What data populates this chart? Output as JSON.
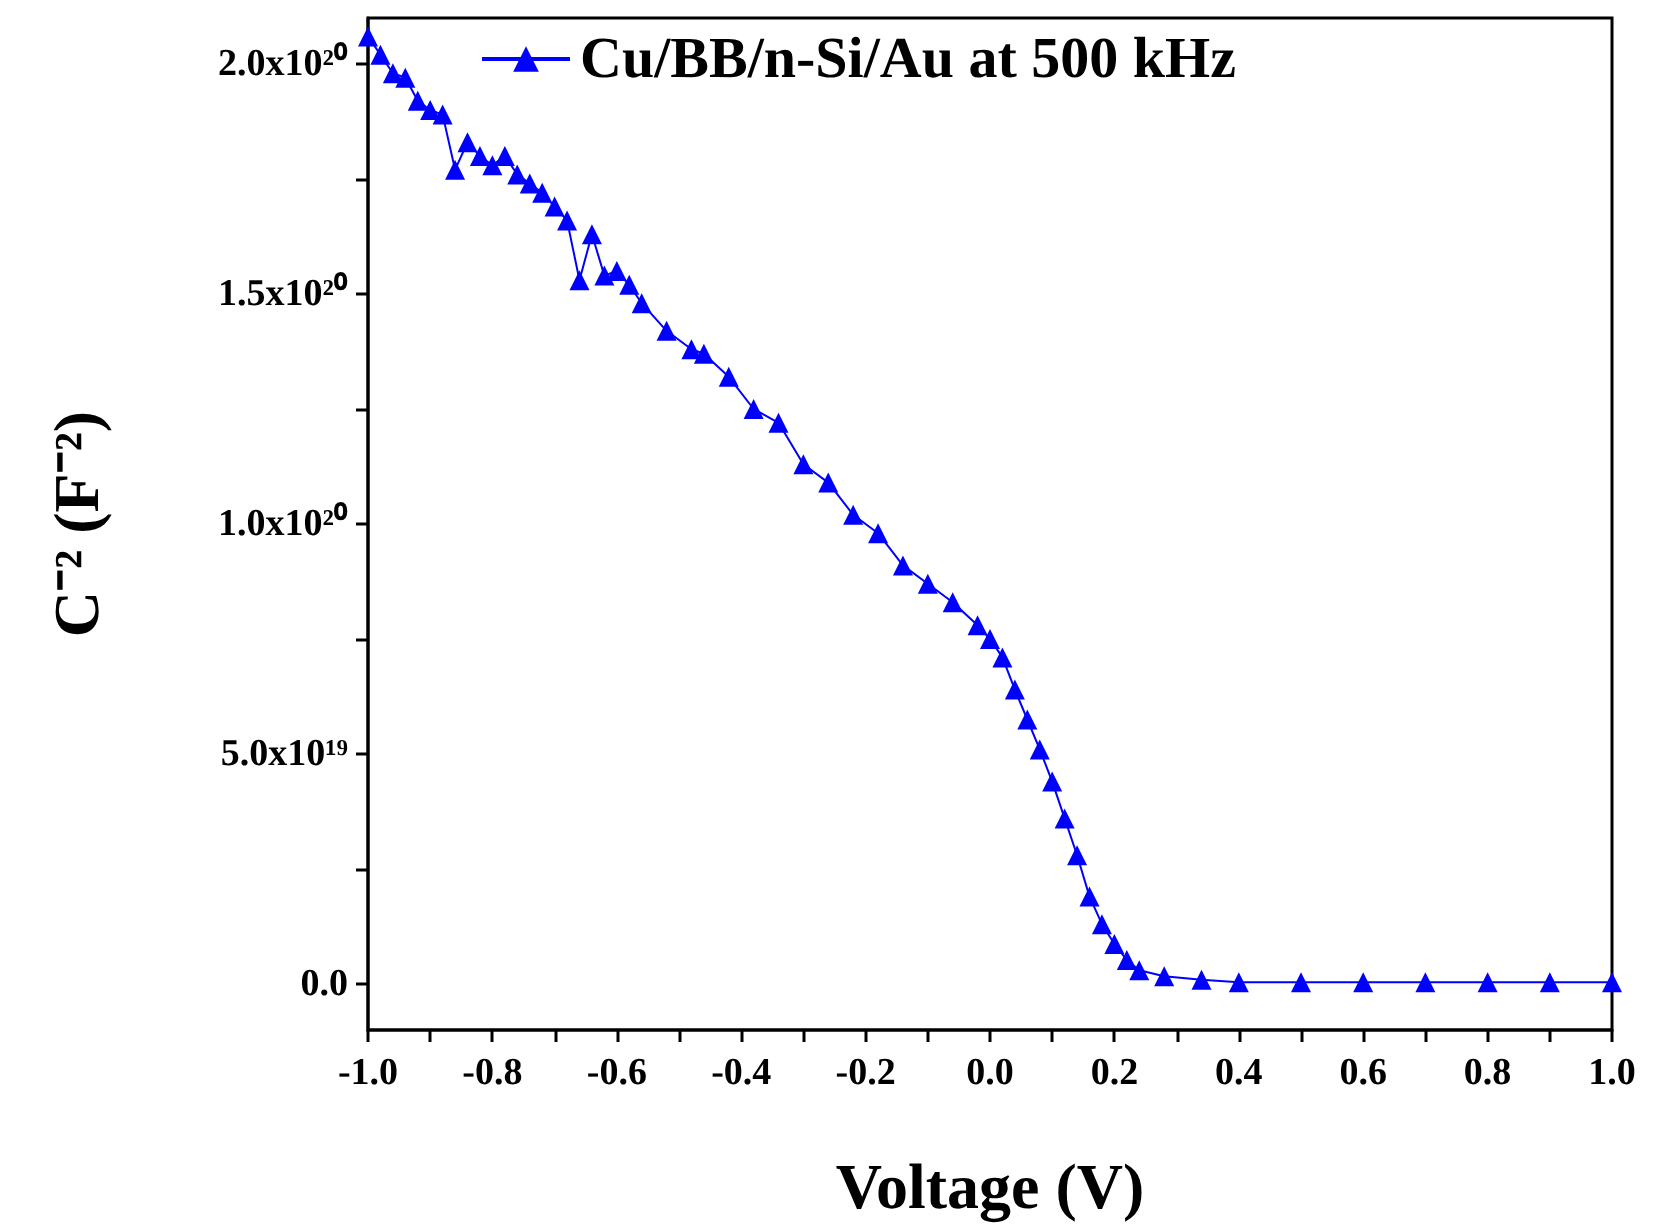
{
  "chart_data": {
    "type": "line",
    "xlabel": "Voltage (V)",
    "ylabel": "C⁻² (F⁻²)",
    "marker": "triangle",
    "line_style": "solid",
    "legend": "top",
    "grid": false,
    "xlim": [
      -1.0,
      1.0
    ],
    "xticks": [
      {
        "value": -1.0,
        "label": "-1.0"
      },
      {
        "value": -0.9,
        "label": null
      },
      {
        "value": -0.8,
        "label": "-0.8"
      },
      {
        "value": -0.7,
        "label": null
      },
      {
        "value": -0.6,
        "label": "-0.6"
      },
      {
        "value": -0.5,
        "label": null
      },
      {
        "value": -0.4,
        "label": "-0.4"
      },
      {
        "value": -0.3,
        "label": null
      },
      {
        "value": -0.2,
        "label": "-0.2"
      },
      {
        "value": -0.1,
        "label": null
      },
      {
        "value": 0.0,
        "label": "0.0"
      },
      {
        "value": 0.1,
        "label": null
      },
      {
        "value": 0.2,
        "label": "0.2"
      },
      {
        "value": 0.3,
        "label": null
      },
      {
        "value": 0.4,
        "label": "0.4"
      },
      {
        "value": 0.5,
        "label": null
      },
      {
        "value": 0.6,
        "label": "0.6"
      },
      {
        "value": 0.7,
        "label": null
      },
      {
        "value": 0.8,
        "label": "0.8"
      },
      {
        "value": 0.9,
        "label": null
      },
      {
        "value": 1.0,
        "label": "1.0"
      }
    ],
    "ylim": [
      -1e+19,
      2.1e+20
    ],
    "yticks": [
      {
        "value": 0,
        "label": "0.0"
      },
      {
        "value": 2.5e+19,
        "label": null
      },
      {
        "value": 5e+19,
        "label": "5.0x10¹⁹"
      },
      {
        "value": 7.5e+19,
        "label": null
      },
      {
        "value": 1e+20,
        "label": "1.0x10²⁰"
      },
      {
        "value": 1.25e+20,
        "label": null
      },
      {
        "value": 1.5e+20,
        "label": "1.5x10²⁰"
      },
      {
        "value": 1.75e+20,
        "label": null
      },
      {
        "value": 2e+20,
        "label": "2.0x10²⁰"
      }
    ],
    "series": [
      {
        "name": "Cu/BB/n-Si/Au at 500 kHz",
        "color": "#0000ff",
        "x": [
          -1.0,
          -0.98,
          -0.96,
          -0.94,
          -0.92,
          -0.9,
          -0.88,
          -0.86,
          -0.84,
          -0.82,
          -0.8,
          -0.78,
          -0.76,
          -0.74,
          -0.72,
          -0.7,
          -0.68,
          -0.66,
          -0.64,
          -0.62,
          -0.6,
          -0.58,
          -0.56,
          -0.52,
          -0.48,
          -0.46,
          -0.42,
          -0.38,
          -0.34,
          -0.3,
          -0.26,
          -0.22,
          -0.18,
          -0.14,
          -0.1,
          -0.06,
          -0.02,
          0.0,
          0.02,
          0.04,
          0.06,
          0.08,
          0.1,
          0.12,
          0.14,
          0.16,
          0.18,
          0.2,
          0.22,
          0.24,
          0.28,
          0.34,
          0.4,
          0.5,
          0.6,
          0.7,
          0.8,
          0.9,
          1.0
        ],
        "values": [
          2.06e+20,
          2.02e+20,
          1.98e+20,
          1.97e+20,
          1.92e+20,
          1.9e+20,
          1.89e+20,
          1.77e+20,
          1.83e+20,
          1.8e+20,
          1.78e+20,
          1.8e+20,
          1.76e+20,
          1.74e+20,
          1.72e+20,
          1.69e+20,
          1.66e+20,
          1.53e+20,
          1.63e+20,
          1.54e+20,
          1.55e+20,
          1.52e+20,
          1.48e+20,
          1.42e+20,
          1.38e+20,
          1.37e+20,
          1.32e+20,
          1.25e+20,
          1.22e+20,
          1.13e+20,
          1.09e+20,
          1.02e+20,
          9.8e+19,
          9.1e+19,
          8.7e+19,
          8.3e+19,
          7.8e+19,
          7.5e+19,
          7.1e+19,
          6.4e+19,
          5.75e+19,
          5.1e+19,
          4.4e+19,
          3.6e+19,
          2.8e+19,
          1.9e+19,
          1.3e+19,
          8.7e+18,
          5.2e+18,
          3e+18,
          1.7e+18,
          9e+17,
          4e+17,
          4e+17,
          4e+17,
          4e+17,
          4e+17,
          4e+17,
          4e+17
        ]
      }
    ]
  }
}
